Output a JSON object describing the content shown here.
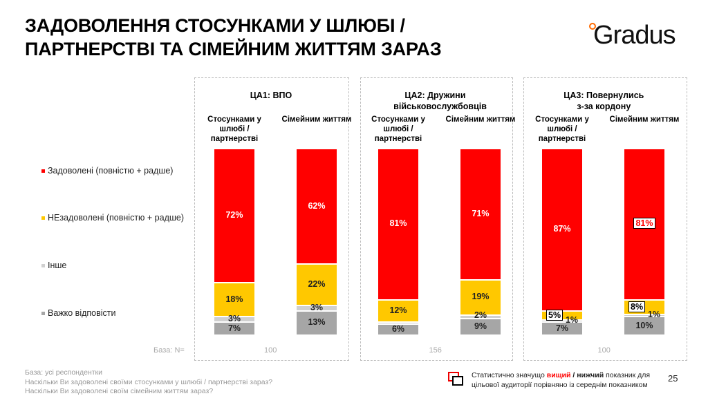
{
  "title_lines": [
    "ЗАДОВОЛЕННЯ СТОСУНКАМИ У ШЛЮБІ /",
    "ПАРТНЕРСТВІ ТА СІМЕЙНИМ ЖИТТЯМ ЗАРАЗ"
  ],
  "logo": "Gradus",
  "chart_data": {
    "type": "stacked-bar",
    "legend": [
      "Задоволені (повністю + радше)",
      "НЕзадоволені (повністю + радше)",
      "Інше",
      "Важко відповісти"
    ],
    "colors": [
      "#ff0000",
      "#ffc800",
      "#d0d0d0",
      "#a6a6a6"
    ],
    "groups": [
      {
        "title": "ЦА1: ВПО",
        "base": "100",
        "bars": [
          {
            "label": "Стосунками у шлюбі / партнерстві",
            "values": [
              72,
              18,
              3,
              7
            ],
            "labels": [
              "72%",
              "18%",
              "3%",
              "7%"
            ],
            "highlight": [
              false,
              false,
              false,
              false
            ]
          },
          {
            "label": "Сімейним життям",
            "values": [
              62,
              22,
              3,
              13
            ],
            "labels": [
              "62%",
              "22%",
              "3%",
              "13%"
            ],
            "highlight": [
              false,
              false,
              false,
              false
            ]
          }
        ]
      },
      {
        "title": "ЦА2: Дружини військовослужбовців",
        "base": "156",
        "bars": [
          {
            "label": "Стосунками у шлюбі / партнерстві",
            "values": [
              81,
              12,
              1,
              6
            ],
            "labels": [
              "81%",
              "12%",
              "",
              "6%"
            ],
            "highlight": [
              false,
              false,
              false,
              false
            ]
          },
          {
            "label": "Сімейним життям",
            "values": [
              71,
              19,
              2,
              9
            ],
            "labels": [
              "71%",
              "19%",
              "2%",
              "9%"
            ],
            "highlight": [
              false,
              false,
              false,
              false
            ]
          }
        ]
      },
      {
        "title": "ЦА3: Повернулись з-за кордону",
        "base": "100",
        "bars": [
          {
            "label": "Стосунками у шлюбі / партнерстві",
            "values": [
              87,
              5,
              1,
              7
            ],
            "labels": [
              "87%",
              "5%",
              "1%",
              "7%"
            ],
            "highlight": [
              false,
              true,
              false,
              false
            ]
          },
          {
            "label": "Сімейним життям",
            "values": [
              81,
              8,
              1,
              10
            ],
            "labels": [
              "81%",
              "8%",
              "1%",
              "10%"
            ],
            "highlight": [
              true,
              true,
              false,
              false
            ]
          }
        ]
      }
    ]
  },
  "base_label": "База: N=",
  "footnotes": [
    "База: усі респондентки",
    "Наскільки Ви задоволені своїми стосунками у шлюбі / партнерстві зараз?",
    "Наскільки Ви задоволені своїм сімейним життям зараз?"
  ],
  "note": {
    "pre": "Статистично значущо ",
    "higher": "вищий",
    "sep": " / ",
    "lower": "нижчий",
    "post": " показник для",
    "line2": "цільової аудиторії порівняно із середнім показником"
  },
  "page_number": "25"
}
